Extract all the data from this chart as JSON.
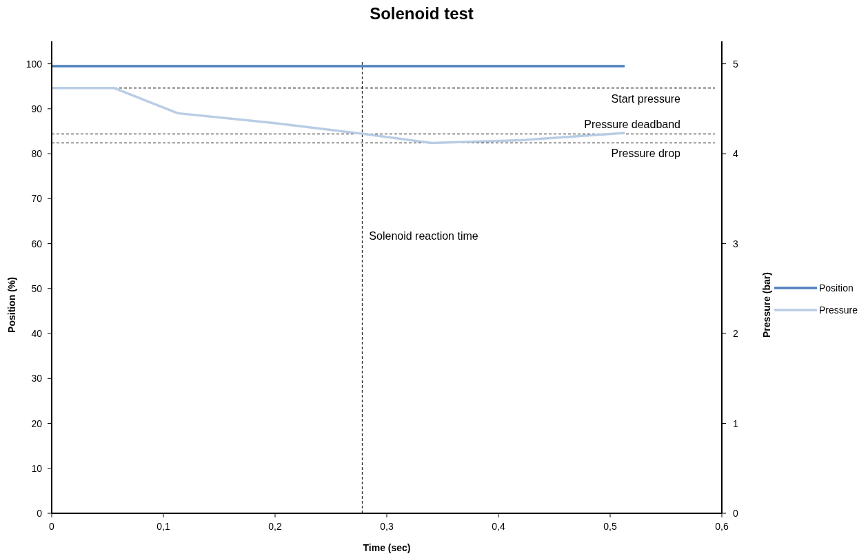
{
  "chart_data": {
    "type": "line",
    "title": "Solenoid test",
    "xlabel": "Time (sec)",
    "ylabel": "Position (%)",
    "y2label": "Pressure (bar)",
    "xlim": [
      0,
      0.6
    ],
    "xticks": [
      0,
      {
        "value": 0.1,
        "label": "0,1"
      },
      {
        "value": 0.2,
        "label": "0,2"
      },
      {
        "value": 0.3,
        "label": "0,3"
      },
      {
        "value": 0.4,
        "label": "0,4"
      },
      {
        "value": 0.5,
        "label": "0,5"
      },
      {
        "value": 0.6,
        "label": "0,6"
      }
    ],
    "ylim": [
      0,
      105
    ],
    "yticks": [
      0,
      10,
      20,
      30,
      40,
      50,
      60,
      70,
      80,
      90,
      100
    ],
    "y2lim": [
      0,
      5.25
    ],
    "y2ticks": [
      0,
      1,
      2,
      3,
      4,
      5
    ],
    "series": [
      {
        "name": "Position",
        "color": "#4f81bd",
        "x": [
          0,
          0.513
        ],
        "values": [
          99.5,
          99.5
        ]
      },
      {
        "name": "Pressure",
        "color": "#b9cde5",
        "axis": "y2",
        "x": [
          0,
          0.056,
          0.113,
          0.2,
          0.28,
          0.34,
          0.42,
          0.513
        ],
        "values": [
          4.73,
          4.73,
          4.45,
          4.34,
          4.22,
          4.12,
          4.15,
          4.23
        ]
      }
    ],
    "ref_lines": [
      {
        "axis": "y2",
        "value": 4.73,
        "label": "Start pressure",
        "line_style": "dashed",
        "color": "#000000"
      },
      {
        "axis": "y2",
        "value": 4.22,
        "label": "Pressure deadband",
        "line_style": "dashed",
        "color": "#000000"
      },
      {
        "axis": "y2",
        "value": 4.12,
        "label": "Pressure drop",
        "line_style": "dashed",
        "color": "#000000"
      },
      {
        "axis": "x",
        "value": 0.278,
        "label": "Solenoid reaction time",
        "line_style": "dashed",
        "color": "#000000"
      }
    ],
    "grid": false,
    "legend": "right",
    "marker": "none",
    "line_style": "solid"
  }
}
